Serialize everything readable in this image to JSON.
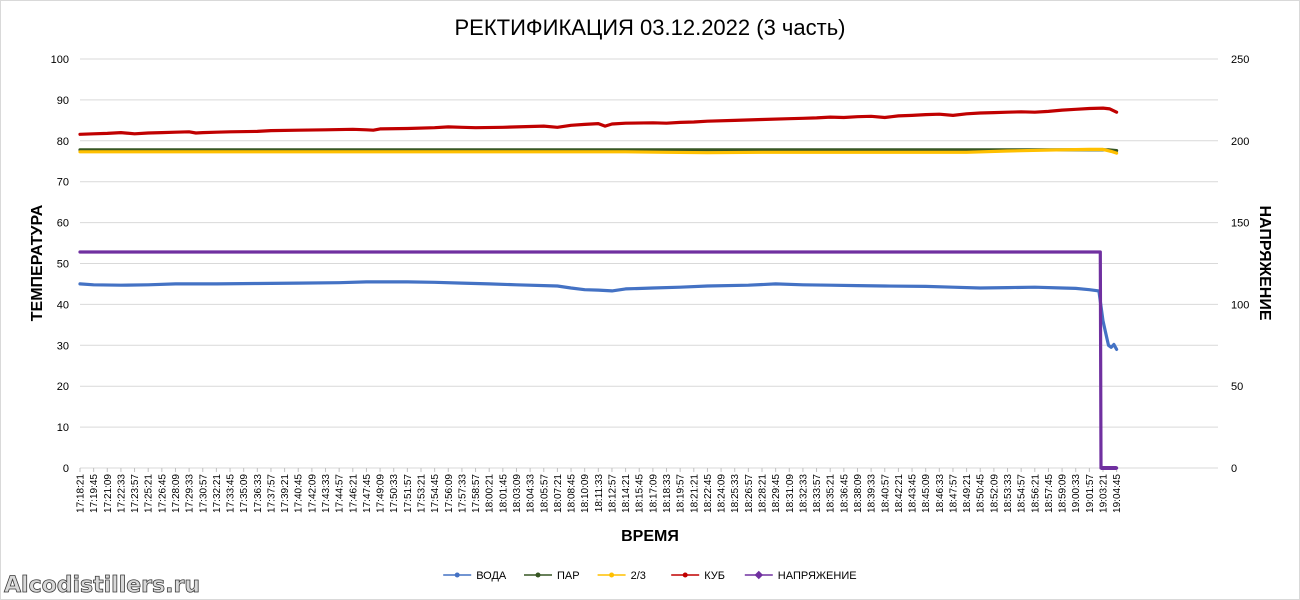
{
  "watermark": "Alcodistillers.ru",
  "chart_data": {
    "type": "line",
    "title": "РЕКТИФИКАЦИЯ 03.12.2022 (3 часть)",
    "xlabel": "ВРЕМЯ",
    "ylabel": "ТЕМПЕРАТУРА",
    "y2label": "НАПРЯЖЕНИЕ",
    "ylim": [
      0,
      100
    ],
    "y2lim": [
      0,
      250
    ],
    "yticks": [
      0,
      10,
      20,
      30,
      40,
      50,
      60,
      70,
      80,
      90,
      100
    ],
    "y2ticks": [
      0,
      50,
      100,
      150,
      200,
      250
    ],
    "grid": "horizontal",
    "legend_position": "bottom",
    "x_ticks": [
      "17:18:21",
      "17:19:45",
      "17:21:09",
      "17:22:33",
      "17:23:57",
      "17:25:21",
      "17:26:45",
      "17:28:09",
      "17:29:33",
      "17:30:57",
      "17:32:21",
      "17:33:45",
      "17:35:09",
      "17:36:33",
      "17:37:57",
      "17:39:21",
      "17:40:45",
      "17:42:09",
      "17:43:33",
      "17:44:57",
      "17:46:21",
      "17:47:45",
      "17:49:09",
      "17:50:33",
      "17:51:57",
      "17:53:21",
      "17:54:45",
      "17:56:09",
      "17:57:33",
      "17:58:57",
      "18:00:21",
      "18:01:45",
      "18:03:09",
      "18:04:33",
      "18:05:57",
      "18:07:21",
      "18:08:45",
      "18:10:09",
      "18:11:33",
      "18:12:57",
      "18:14:21",
      "18:15:45",
      "18:17:09",
      "18:18:33",
      "18:19:57",
      "18:21:21",
      "18:22:45",
      "18:24:09",
      "18:25:33",
      "18:26:57",
      "18:28:21",
      "18:29:45",
      "18:31:09",
      "18:32:33",
      "18:33:57",
      "18:35:21",
      "18:36:45",
      "18:38:09",
      "18:39:33",
      "18:40:57",
      "18:42:21",
      "18:43:45",
      "18:45:09",
      "18:46:33",
      "18:47:57",
      "18:49:21",
      "18:50:45",
      "18:52:09",
      "18:53:33",
      "18:54:57",
      "18:56:21",
      "18:57:45",
      "18:59:09",
      "19:00:33",
      "19:01:57",
      "19:03:21",
      "19:04:45"
    ],
    "series": [
      {
        "name": "ВОДА",
        "color": "#4472C4",
        "axis": "left",
        "marker": "circle",
        "points": [
          [
            0,
            45.0
          ],
          [
            1,
            44.8
          ],
          [
            3,
            44.7
          ],
          [
            5,
            44.8
          ],
          [
            7,
            45.0
          ],
          [
            10,
            45.0
          ],
          [
            13,
            45.1
          ],
          [
            16,
            45.2
          ],
          [
            19,
            45.3
          ],
          [
            21,
            45.5
          ],
          [
            24,
            45.5
          ],
          [
            26,
            45.4
          ],
          [
            28,
            45.2
          ],
          [
            30,
            45.0
          ],
          [
            32,
            44.8
          ],
          [
            35,
            44.5
          ],
          [
            36,
            44.0
          ],
          [
            37,
            43.6
          ],
          [
            38,
            43.5
          ],
          [
            39,
            43.3
          ],
          [
            40,
            43.8
          ],
          [
            42,
            44.0
          ],
          [
            44,
            44.2
          ],
          [
            46,
            44.5
          ],
          [
            49,
            44.7
          ],
          [
            51,
            45.0
          ],
          [
            53,
            44.8
          ],
          [
            55,
            44.7
          ],
          [
            57,
            44.6
          ],
          [
            59,
            44.5
          ],
          [
            62,
            44.4
          ],
          [
            64,
            44.2
          ],
          [
            66,
            44.0
          ],
          [
            68,
            44.1
          ],
          [
            70,
            44.2
          ],
          [
            72,
            44.0
          ],
          [
            73,
            43.9
          ],
          [
            74,
            43.6
          ],
          [
            74.7,
            43.3
          ],
          [
            75.0,
            36.0
          ],
          [
            75.2,
            33.0
          ],
          [
            75.4,
            30.0
          ],
          [
            75.6,
            29.5
          ],
          [
            75.8,
            30.2
          ],
          [
            76,
            29.0
          ]
        ]
      },
      {
        "name": "ПАР",
        "color": "#375623",
        "axis": "left",
        "marker": "circle",
        "points": [
          [
            0,
            77.8
          ],
          [
            10,
            77.8
          ],
          [
            20,
            77.8
          ],
          [
            30,
            77.8
          ],
          [
            40,
            77.8
          ],
          [
            50,
            77.8
          ],
          [
            60,
            77.8
          ],
          [
            70,
            77.8
          ],
          [
            74,
            77.8
          ],
          [
            75.4,
            77.8
          ],
          [
            76,
            77.6
          ]
        ]
      },
      {
        "name": "2/3",
        "color": "#FFC000",
        "axis": "left",
        "marker": "circle",
        "points": [
          [
            0,
            77.3
          ],
          [
            10,
            77.3
          ],
          [
            20,
            77.3
          ],
          [
            30,
            77.3
          ],
          [
            40,
            77.3
          ],
          [
            43,
            77.2
          ],
          [
            46,
            77.1
          ],
          [
            50,
            77.2
          ],
          [
            55,
            77.2
          ],
          [
            60,
            77.2
          ],
          [
            65,
            77.2
          ],
          [
            68,
            77.5
          ],
          [
            72,
            77.8
          ],
          [
            74,
            77.9
          ],
          [
            75,
            77.9
          ],
          [
            75.6,
            77.4
          ],
          [
            76,
            77.0
          ]
        ]
      },
      {
        "name": "КУБ",
        "color": "#C00000",
        "axis": "left",
        "marker": "circle",
        "points": [
          [
            0,
            81.6
          ],
          [
            1,
            81.7
          ],
          [
            2,
            81.8
          ],
          [
            3,
            82.0
          ],
          [
            4,
            81.7
          ],
          [
            5,
            81.9
          ],
          [
            6,
            82.0
          ],
          [
            7,
            82.1
          ],
          [
            8,
            82.2
          ],
          [
            8.5,
            81.9
          ],
          [
            9,
            82.0
          ],
          [
            10,
            82.1
          ],
          [
            11,
            82.2
          ],
          [
            13,
            82.3
          ],
          [
            14,
            82.5
          ],
          [
            16,
            82.6
          ],
          [
            18,
            82.7
          ],
          [
            20,
            82.8
          ],
          [
            21,
            82.7
          ],
          [
            21.5,
            82.6
          ],
          [
            22,
            82.9
          ],
          [
            24,
            83.0
          ],
          [
            26,
            83.2
          ],
          [
            27,
            83.4
          ],
          [
            28,
            83.3
          ],
          [
            29,
            83.2
          ],
          [
            31,
            83.3
          ],
          [
            33,
            83.5
          ],
          [
            34,
            83.6
          ],
          [
            35,
            83.3
          ],
          [
            36,
            83.8
          ],
          [
            37,
            84.0
          ],
          [
            38,
            84.2
          ],
          [
            38.5,
            83.6
          ],
          [
            39,
            84.1
          ],
          [
            40,
            84.3
          ],
          [
            42,
            84.4
          ],
          [
            43,
            84.3
          ],
          [
            44,
            84.5
          ],
          [
            45,
            84.6
          ],
          [
            46,
            84.8
          ],
          [
            48,
            85.0
          ],
          [
            50,
            85.2
          ],
          [
            52,
            85.4
          ],
          [
            53,
            85.5
          ],
          [
            54,
            85.6
          ],
          [
            55,
            85.8
          ],
          [
            56,
            85.7
          ],
          [
            57,
            85.9
          ],
          [
            58,
            86.0
          ],
          [
            59,
            85.7
          ],
          [
            59.5,
            85.9
          ],
          [
            60,
            86.1
          ],
          [
            61,
            86.2
          ],
          [
            62,
            86.4
          ],
          [
            63,
            86.5
          ],
          [
            64,
            86.2
          ],
          [
            65,
            86.6
          ],
          [
            66,
            86.8
          ],
          [
            67,
            86.9
          ],
          [
            68,
            87.0
          ],
          [
            69,
            87.1
          ],
          [
            70,
            87.0
          ],
          [
            71,
            87.2
          ],
          [
            72,
            87.5
          ],
          [
            73,
            87.7
          ],
          [
            74,
            87.9
          ],
          [
            75,
            88.0
          ],
          [
            75.5,
            87.8
          ],
          [
            76,
            87.0
          ]
        ]
      },
      {
        "name": "НАПРЯЖЕНИЕ",
        "color": "#7030A0",
        "axis": "right",
        "marker": "diamond",
        "points": [
          [
            0,
            132
          ],
          [
            10,
            132
          ],
          [
            20,
            132
          ],
          [
            30,
            132
          ],
          [
            40,
            132
          ],
          [
            50,
            132
          ],
          [
            60,
            132
          ],
          [
            70,
            132
          ],
          [
            74.8,
            132
          ],
          [
            74.85,
            0
          ],
          [
            76,
            0
          ]
        ]
      }
    ]
  }
}
